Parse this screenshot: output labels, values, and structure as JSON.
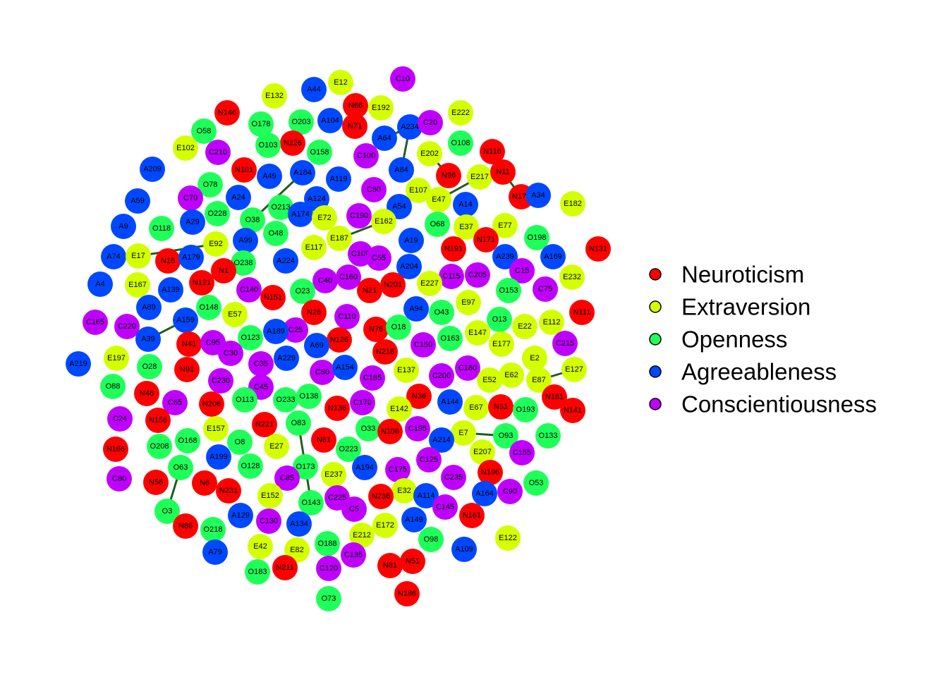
{
  "legend": [
    {
      "label": "Neuroticism",
      "code": "N",
      "color": "#ff0000"
    },
    {
      "label": "Extraversion",
      "code": "E",
      "color": "#d4ff00"
    },
    {
      "label": "Openness",
      "code": "O",
      "color": "#1fff5a"
    },
    {
      "label": "Agreeableness",
      "code": "A",
      "color": "#0048ff"
    },
    {
      "label": "Conscientiousness",
      "code": "C",
      "color": "#c000ff"
    }
  ],
  "nodes": [
    "C10",
    "E12",
    "A44",
    "E132",
    "N66",
    "E192",
    "E222",
    "N146",
    "O178",
    "O203",
    "A104",
    "N71",
    "A64",
    "A234",
    "C20",
    "O58",
    "E102",
    "C210",
    "N226",
    "O103",
    "O158",
    "C100",
    "E202",
    "O108",
    "N116",
    "A209",
    "N101",
    "A49",
    "A184",
    "A119",
    "A84",
    "N96",
    "E217",
    "N11",
    "O78",
    "C70",
    "A24",
    "O213",
    "A124",
    "C50",
    "E107",
    "E47",
    "N176",
    "A34",
    "E182",
    "A59",
    "O228",
    "O38",
    "A174",
    "C190",
    "A54",
    "A14",
    "A29",
    "O118",
    "E72",
    "E162",
    "O68",
    "E37",
    "E77",
    "A9",
    "O48",
    "E187",
    "N171",
    "O198",
    "A99",
    "E92",
    "E117",
    "A19",
    "N191",
    "N131",
    "A74",
    "E17",
    "N16",
    "A179",
    "O238",
    "A224",
    "C105",
    "C55",
    "A239",
    "A169",
    "A4",
    "E167",
    "N1",
    "N121",
    "C40",
    "C160",
    "A204",
    "C115",
    "C205",
    "C15",
    "E232",
    "A139",
    "C140",
    "N151",
    "O23",
    "N21",
    "N201",
    "E227",
    "O153",
    "C75",
    "A89",
    "O148",
    "E57",
    "N26",
    "C110",
    "A94",
    "O43",
    "E97",
    "N111",
    "C165",
    "C220",
    "A159",
    "C25",
    "N76",
    "O18",
    "O13",
    "E22",
    "E112",
    "A39",
    "N41",
    "C95",
    "O123",
    "A189",
    "N126",
    "E147",
    "A69",
    "O163",
    "C150",
    "E177",
    "C215",
    "C30",
    "A229",
    "N216",
    "A219",
    "E197",
    "N91",
    "C35",
    "C60",
    "A154",
    "E137",
    "C200",
    "C180",
    "E2",
    "O28",
    "C230",
    "C185",
    "E52",
    "E62",
    "E127",
    "C45",
    "N36",
    "E87",
    "O88",
    "N46",
    "O233",
    "O138",
    "N206",
    "O113",
    "C170",
    "A144",
    "N181",
    "C65",
    "N136",
    "E142",
    "E67",
    "N31",
    "O193",
    "N141",
    "C24",
    "N156",
    "N221",
    "O83",
    "O33",
    "N106",
    "C195",
    "E7",
    "O133",
    "O168",
    "E157",
    "O208",
    "E27",
    "O8",
    "N61",
    "O223",
    "A214",
    "O93",
    "N166",
    "A199",
    "O128",
    "O173",
    "A194",
    "E207",
    "C125",
    "C155",
    "O63",
    "N196",
    "C175",
    "E237",
    "N56",
    "C80",
    "N6",
    "C235",
    "C85",
    "O53",
    "N231",
    "E152",
    "C90",
    "A164",
    "E32",
    "N236",
    "A114",
    "O143",
    "C225",
    "C5",
    "C145",
    "O3",
    "A129",
    "C130",
    "N161",
    "N86",
    "A134",
    "A149",
    "O218",
    "E172",
    "E212",
    "E122",
    "O98",
    "A79",
    "E42",
    "E82",
    "O188",
    "A109",
    "C135",
    "N81",
    "N51",
    "N211",
    "O183",
    "C120",
    "N186",
    "O73"
  ]
}
